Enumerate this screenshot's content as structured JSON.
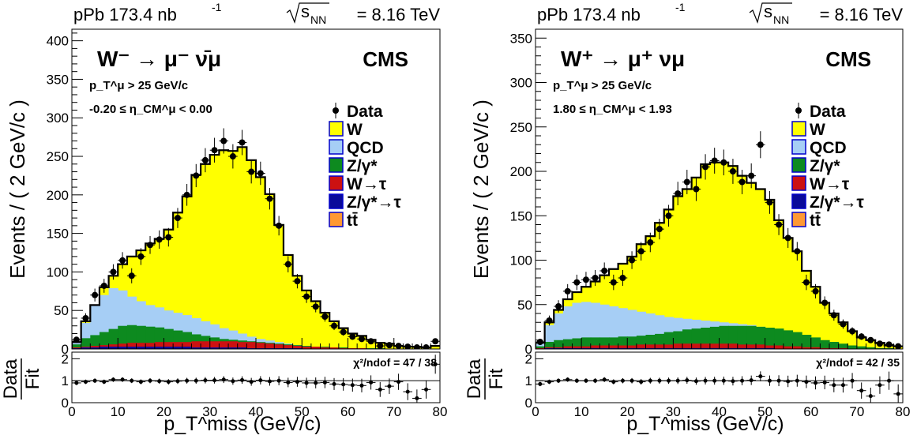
{
  "chart_data": [
    {
      "type": "bar",
      "header_left": "pPb 173.4 nb",
      "header_left_sup": "-1",
      "header_right": "= 8.16 TeV",
      "header_right_sqrt": "s",
      "header_right_sub": "NN",
      "process": "W⁻ → μ⁻ ν̄μ",
      "experiment": "CMS",
      "cut_pt": "p_T^μ > 25 GeV/c",
      "cut_eta": "-0.20 ≤ η_CM^μ < 0.00",
      "chi2": "χ²/ndof = 47 / 38",
      "ylabel": "Events / ( 2 GeV/c )",
      "xlabel": "p_T^miss (GeV/c)",
      "ratio_ylabel_num": "Data",
      "ratio_ylabel_den": "Fit",
      "xlim": [
        0,
        80
      ],
      "ylim": [
        0,
        415
      ],
      "x_ticks": [
        0,
        10,
        20,
        30,
        40,
        50,
        60,
        70,
        80
      ],
      "y_ticks": [
        0,
        50,
        100,
        150,
        200,
        250,
        300,
        350,
        400
      ],
      "ratio_ylim": [
        0,
        2.3
      ],
      "ratio_ticks": [
        0,
        1,
        2
      ],
      "bin_edges_step": 2,
      "legend": [
        {
          "label": "Data",
          "color": "#000000"
        },
        {
          "label": "W",
          "color": "#ffff00"
        },
        {
          "label": "QCD",
          "color": "#a6cef5"
        },
        {
          "label": "Z/γ*",
          "color": "#0d8a1f"
        },
        {
          "label": "W→τ",
          "color": "#cc1111"
        },
        {
          "label": "Z/γ*→τ",
          "color": "#0a0a9a"
        },
        {
          "label": "tt̄",
          "color": "#ff9933"
        }
      ],
      "series": [
        {
          "name": "Data",
          "values": [
            12,
            40,
            70,
            82,
            100,
            115,
            95,
            120,
            135,
            142,
            145,
            170,
            200,
            225,
            245,
            258,
            270,
            250,
            268,
            230,
            228,
            195,
            160,
            110,
            88,
            68,
            55,
            42,
            30,
            22,
            16,
            13,
            10,
            4,
            5,
            4,
            3,
            2,
            2,
            10
          ]
        },
        {
          "name": "W",
          "values": [
            9,
            36,
            57,
            80,
            95,
            110,
            120,
            128,
            137,
            143,
            155,
            177,
            198,
            226,
            240,
            252,
            258,
            257,
            262,
            245,
            223,
            201,
            161,
            122,
            95,
            76,
            62,
            47,
            36,
            27,
            20,
            17,
            12,
            8,
            7,
            4,
            3,
            3,
            2,
            4
          ]
        },
        {
          "name": "QCD",
          "values": [
            9,
            34,
            56,
            70,
            79,
            76,
            68,
            62,
            57,
            54,
            50,
            47,
            44,
            40,
            36,
            32,
            27,
            24,
            20,
            16,
            13,
            11,
            9,
            7,
            5,
            4,
            3,
            2,
            2,
            1,
            1,
            1,
            0,
            0,
            0,
            0,
            0,
            0,
            0,
            0
          ]
        },
        {
          "name": "Z/γ*",
          "values": [
            6,
            14,
            18,
            22,
            26,
            30,
            31,
            30,
            29,
            28,
            26,
            24,
            22,
            19,
            17,
            15,
            13,
            12,
            11,
            10,
            9,
            8,
            7,
            6,
            5,
            4,
            3,
            3,
            2,
            2,
            1,
            1,
            1,
            1,
            0,
            0,
            0,
            0,
            0,
            0
          ]
        },
        {
          "name": "W→τ",
          "values": [
            2,
            3,
            4,
            5,
            6,
            7,
            8,
            8,
            8,
            9,
            9,
            9,
            9,
            10,
            10,
            10,
            10,
            10,
            9,
            9,
            8,
            7,
            6,
            5,
            4,
            3,
            3,
            2,
            2,
            1,
            1,
            1,
            0,
            0,
            0,
            0,
            0,
            0,
            0,
            0
          ]
        },
        {
          "name": "Z/γ*→τ",
          "values": [
            1,
            2,
            2,
            3,
            3,
            3,
            3,
            3,
            3,
            3,
            3,
            3,
            3,
            2,
            2,
            2,
            2,
            2,
            2,
            1,
            1,
            1,
            1,
            1,
            1,
            0,
            0,
            0,
            0,
            0,
            0,
            0,
            0,
            0,
            0,
            0,
            0,
            0,
            0,
            0
          ]
        },
        {
          "name": "Ratio",
          "values": [
            0.9,
            0.95,
            1.0,
            0.95,
            1.05,
            1.05,
            1.0,
            0.95,
            1.0,
            0.98,
            0.95,
            0.98,
            1.0,
            1.0,
            1.02,
            1.02,
            1.05,
            0.98,
            1.03,
            0.95,
            1.02,
            0.97,
            1.0,
            0.92,
            0.95,
            0.9,
            0.9,
            0.92,
            0.85,
            0.83,
            0.8,
            0.78,
            0.92,
            0.6,
            0.75,
            0.95,
            0.5,
            0.2,
            0.6,
            1.75
          ]
        }
      ]
    },
    {
      "type": "bar",
      "header_left": "pPb 173.4 nb",
      "header_left_sup": "-1",
      "header_right": "= 8.16 TeV",
      "header_right_sqrt": "s",
      "header_right_sub": "NN",
      "process": "W⁺ → μ⁺ νμ",
      "experiment": "CMS",
      "cut_pt": "p_T^μ > 25 GeV/c",
      "cut_eta": "1.80 ≤ η_CM^μ < 1.93",
      "chi2": "χ²/ndof = 42 / 35",
      "ylabel": "Events / ( 2 GeV/c )",
      "xlabel": "p_T^miss (GeV/c)",
      "ratio_ylabel_num": "Data",
      "ratio_ylabel_den": "Fit",
      "xlim": [
        0,
        80
      ],
      "ylim": [
        0,
        360
      ],
      "x_ticks": [
        0,
        10,
        20,
        30,
        40,
        50,
        60,
        70,
        80
      ],
      "y_ticks": [
        0,
        50,
        100,
        150,
        200,
        250,
        300,
        350
      ],
      "ratio_ylim": [
        0,
        2.3
      ],
      "ratio_ticks": [
        0,
        1,
        2
      ],
      "bin_edges_step": 2,
      "legend": [
        {
          "label": "Data",
          "color": "#000000"
        },
        {
          "label": "W",
          "color": "#ffff00"
        },
        {
          "label": "QCD",
          "color": "#a6cef5"
        },
        {
          "label": "Z/γ*",
          "color": "#0d8a1f"
        },
        {
          "label": "W→τ",
          "color": "#cc1111"
        },
        {
          "label": "Z/γ*→τ",
          "color": "#0a0a9a"
        },
        {
          "label": "tt̄",
          "color": "#ff9933"
        }
      ],
      "series": [
        {
          "name": "Data",
          "values": [
            8,
            32,
            48,
            65,
            75,
            78,
            80,
            88,
            75,
            80,
            100,
            110,
            120,
            135,
            150,
            175,
            188,
            180,
            205,
            212,
            210,
            200,
            188,
            195,
            230,
            165,
            140,
            125,
            110,
            75,
            65,
            52,
            38,
            28,
            20,
            14,
            10,
            6,
            5,
            3
          ]
        },
        {
          "name": "W",
          "values": [
            7,
            30,
            44,
            56,
            64,
            70,
            76,
            83,
            90,
            96,
            104,
            118,
            127,
            142,
            157,
            172,
            180,
            193,
            208,
            210,
            210,
            206,
            195,
            187,
            180,
            168,
            145,
            125,
            110,
            88,
            70,
            52,
            40,
            30,
            20,
            13,
            10,
            7,
            4,
            3
          ]
        },
        {
          "name": "QCD",
          "values": [
            6,
            27,
            40,
            48,
            52,
            53,
            52,
            50,
            48,
            46,
            44,
            42,
            40,
            38,
            36,
            35,
            34,
            33,
            32,
            31,
            30,
            29,
            28,
            27,
            25,
            23,
            20,
            17,
            14,
            11,
            9,
            7,
            5,
            4,
            3,
            2,
            1,
            1,
            0,
            0
          ]
        },
        {
          "name": "Z/γ*",
          "values": [
            3,
            8,
            10,
            11,
            12,
            13,
            13,
            13,
            13,
            14,
            14,
            15,
            16,
            17,
            19,
            20,
            22,
            23,
            24,
            25,
            26,
            26,
            26,
            26,
            25,
            24,
            23,
            21,
            19,
            16,
            13,
            10,
            8,
            6,
            4,
            3,
            2,
            1,
            1,
            0
          ]
        },
        {
          "name": "W→τ",
          "values": [
            1,
            2,
            2,
            3,
            3,
            3,
            4,
            4,
            4,
            4,
            4,
            5,
            5,
            5,
            5,
            6,
            6,
            6,
            6,
            6,
            6,
            6,
            5,
            5,
            5,
            4,
            4,
            3,
            3,
            2,
            2,
            1,
            1,
            1,
            0,
            0,
            0,
            0,
            0,
            0
          ]
        },
        {
          "name": "Z/γ*→τ",
          "values": [
            0,
            1,
            1,
            1,
            1,
            1,
            1,
            1,
            1,
            1,
            1,
            1,
            1,
            1,
            1,
            1,
            1,
            1,
            1,
            1,
            1,
            1,
            1,
            1,
            1,
            1,
            0,
            0,
            0,
            0,
            0,
            0,
            0,
            0,
            0,
            0,
            0,
            0,
            0,
            0
          ]
        },
        {
          "name": "Ratio",
          "values": [
            0.85,
            0.95,
            1.0,
            1.05,
            1.0,
            1.0,
            1.0,
            1.05,
            0.95,
            1.0,
            1.0,
            0.95,
            1.0,
            1.0,
            1.0,
            1.0,
            1.02,
            0.98,
            1.0,
            1.0,
            1.0,
            0.98,
            1.0,
            1.02,
            1.2,
            1.0,
            1.0,
            0.97,
            1.0,
            0.95,
            0.9,
            0.92,
            0.8,
            0.8,
            1.0,
            0.55,
            0.3,
            0.8,
            1.0,
            0.4
          ]
        }
      ]
    }
  ]
}
